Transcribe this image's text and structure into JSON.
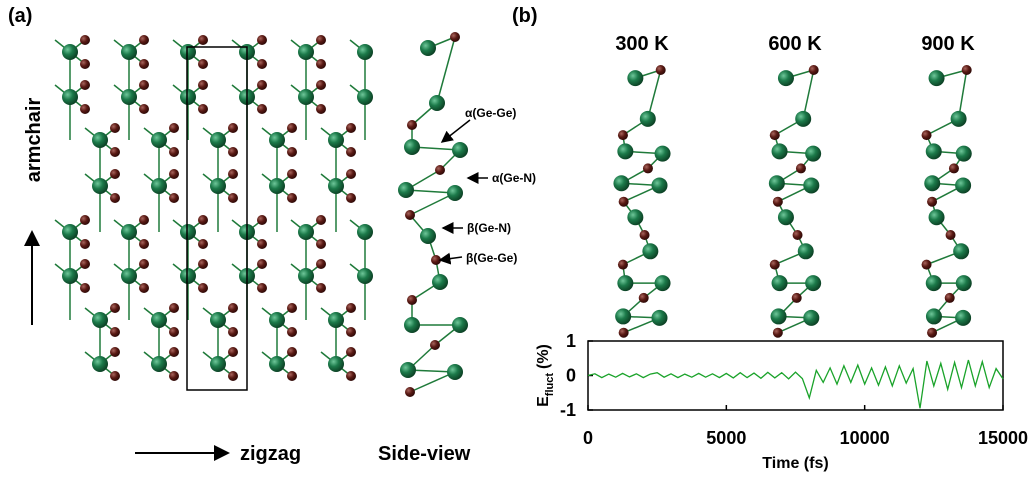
{
  "panel_a": {
    "label": "(a)",
    "armchair": "armchair",
    "zigzag": "zigzag",
    "side_view": "Side-view",
    "bond_labels": [
      "α(Ge-Ge)",
      "α(Ge-N)",
      "β(Ge-N)",
      "β(Ge-Ge)"
    ]
  },
  "panel_b": {
    "label": "(b)",
    "temperatures": [
      "300 K",
      "600 K",
      "900 K"
    ]
  },
  "chart_data": {
    "type": "line",
    "color": "#1aa32a",
    "x_label": "Time (fs)",
    "y_label": {
      "main": "E",
      "sub": "fluct",
      "unit": "(%)"
    },
    "x": [
      0,
      250,
      500,
      750,
      1000,
      1250,
      1500,
      1750,
      2000,
      2250,
      2500,
      2750,
      3000,
      3250,
      3500,
      3750,
      4000,
      4250,
      4500,
      4750,
      5000,
      5250,
      5500,
      5750,
      6000,
      6250,
      6500,
      6750,
      7000,
      7250,
      7500,
      7750,
      8000,
      8250,
      8500,
      8750,
      9000,
      9250,
      9500,
      9750,
      10000,
      10250,
      10500,
      10750,
      11000,
      11250,
      11500,
      11750,
      12000,
      12250,
      12500,
      12750,
      13000,
      13250,
      13500,
      13750,
      14000,
      14250,
      14500,
      14750,
      15000
    ],
    "values": [
      0,
      0.05,
      -0.06,
      0.04,
      -0.05,
      0.06,
      -0.04,
      0.05,
      -0.06,
      0.04,
      0.08,
      -0.05,
      0.05,
      -0.06,
      0.04,
      -0.05,
      0.06,
      -0.05,
      0.05,
      -0.06,
      0.06,
      -0.07,
      0.08,
      -0.06,
      0.07,
      -0.08,
      0.09,
      -0.07,
      0.08,
      -0.1,
      0.1,
      -0.09,
      -0.65,
      0.15,
      -0.2,
      0.22,
      -0.25,
      0.28,
      -0.2,
      0.3,
      -0.25,
      0.22,
      -0.28,
      0.25,
      -0.3,
      0.28,
      -0.22,
      0.2,
      -0.95,
      0.42,
      -0.3,
      0.35,
      -0.4,
      0.38,
      -0.35,
      0.45,
      -0.3,
      0.4,
      -0.35,
      0.2,
      -0.1
    ],
    "xlim": [
      0,
      15000
    ],
    "xticks": [
      0,
      5000,
      10000,
      15000
    ],
    "ylim": [
      -1,
      1
    ],
    "yticks": [
      -1,
      0,
      1
    ]
  }
}
